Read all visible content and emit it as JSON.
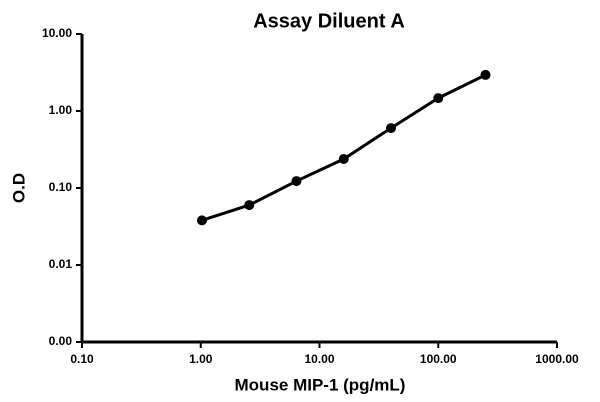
{
  "chart_data": {
    "type": "line",
    "title": "Assay Diluent A",
    "x_label": "Mouse MIP-1 (pg/mL)",
    "y_label": "O.D",
    "x": [
      1.024,
      2.56,
      6.4,
      16,
      40,
      100,
      250
    ],
    "series": [
      {
        "name": "Assay Diluent A",
        "color": "#000000",
        "values": [
          0.038,
          0.06,
          0.123,
          0.238,
          0.6,
          1.47,
          2.94
        ]
      }
    ],
    "x_log": true,
    "y_log": true,
    "xlim": [
      0.1,
      1000
    ],
    "ylim": [
      0.001,
      10
    ],
    "xticks": [
      {
        "value": 0.1,
        "label": "0.10"
      },
      {
        "value": 1,
        "label": "1.00"
      },
      {
        "value": 10,
        "label": "10.00"
      },
      {
        "value": 100,
        "label": "100.00"
      },
      {
        "value": 1000,
        "label": "1000.00"
      }
    ],
    "yticks": [
      {
        "value": 0.001,
        "label": "0.00"
      },
      0.01,
      {
        "value": 0.1,
        "label": "0.10"
      },
      {
        "value": 1,
        "label": "1.00"
      },
      {
        "value": 10,
        "label": "10.00"
      }
    ],
    "grid": false
  }
}
